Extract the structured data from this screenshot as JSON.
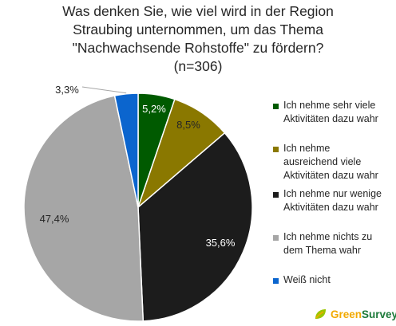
{
  "chart_data": {
    "type": "pie",
    "title": [
      "Was denken Sie, wie viel wird in der Region",
      "Straubing unternommen, um das Thema",
      "\"Nachwachsende Rohstoffe\" zu fördern?",
      "(n=306)"
    ],
    "slices": [
      {
        "label": "Ich nehme sehr viele Aktivitäten dazu wahr",
        "value": 5.2,
        "display": "5,2%",
        "color": "#005a00"
      },
      {
        "label": "Ich nehme ausreichend viele Aktivitäten dazu wahr",
        "value": 8.5,
        "display": "8,5%",
        "color": "#8a7800"
      },
      {
        "label": "Ich nehme nur wenige Aktivitäten dazu wahr",
        "value": 35.6,
        "display": "35,6%",
        "color": "#1c1c1c"
      },
      {
        "label": "Ich nehme nichts zu dem Thema wahr",
        "value": 47.4,
        "display": "47,4%",
        "color": "#a6a6a6"
      },
      {
        "label": "Weiß nicht",
        "value": 3.3,
        "display": "3,3%",
        "color": "#0b65ce"
      }
    ],
    "legend_position": "right"
  },
  "legend": [
    [
      "Ich nehme sehr viele",
      "Aktivitäten dazu wahr"
    ],
    [
      "Ich nehme",
      "ausreichend viele",
      "Aktivitäten dazu wahr"
    ],
    [
      "Ich nehme nur wenige",
      "Aktivitäten dazu wahr"
    ],
    [
      "Ich nehme nichts zu",
      "dem Thema wahr"
    ],
    [
      "Weiß nicht"
    ]
  ],
  "brand": {
    "part1": "Green",
    "part2": "Survey",
    "icon": "leaf-icon"
  }
}
